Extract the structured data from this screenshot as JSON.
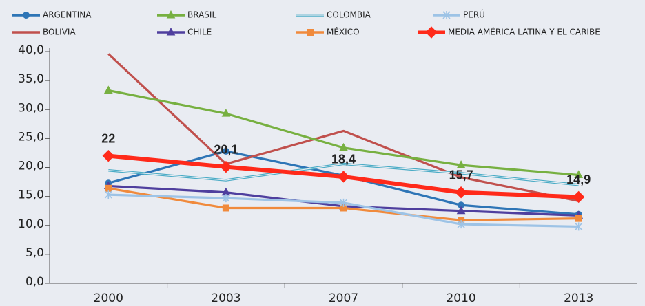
{
  "chart_data": {
    "type": "line",
    "categories": [
      "2000",
      "2003",
      "2007",
      "2010",
      "2013"
    ],
    "ylim": [
      0,
      40
    ],
    "yticks": [
      {
        "value": 0,
        "label": "0,0"
      },
      {
        "value": 5,
        "label": "5,0"
      },
      {
        "value": 10,
        "label": "10,0"
      },
      {
        "value": 15,
        "label": "15,0"
      },
      {
        "value": 20,
        "label": "20,0"
      },
      {
        "value": 25,
        "label": "25,0"
      },
      {
        "value": 30,
        "label": "30,0"
      },
      {
        "value": 35,
        "label": "35,0"
      },
      {
        "value": 40,
        "label": "40,0"
      }
    ],
    "series": [
      {
        "name": "ARGENTINA",
        "color": "#2e75b6",
        "marker": "circle",
        "values": [
          17.3,
          22.8,
          18.6,
          13.5,
          11.9
        ]
      },
      {
        "name": "BOLIVIA",
        "color": "#c0504d",
        "marker": "none",
        "values": [
          39.6,
          20.6,
          26.3,
          18.3,
          14.2
        ]
      },
      {
        "name": "BRASIL",
        "color": "#77b041",
        "marker": "triangle",
        "values": [
          33.3,
          29.3,
          23.4,
          20.4,
          18.7
        ]
      },
      {
        "name": "CHILE",
        "color": "#4f3f9e",
        "marker": "triangle",
        "values": [
          16.8,
          15.7,
          13.3,
          12.5,
          11.7
        ]
      },
      {
        "name": "COLOMBIA",
        "color": "#4bacc6",
        "marker": "double",
        "values": [
          19.5,
          17.8,
          20.6,
          19.0,
          17.0
        ]
      },
      {
        "name": "MÉXICO",
        "color": "#f08a3c",
        "marker": "square",
        "values": [
          16.4,
          13.0,
          13.0,
          10.9,
          11.2
        ]
      },
      {
        "name": "PERÚ",
        "color": "#9dc3e6",
        "marker": "asterisk",
        "values": [
          15.3,
          14.7,
          13.9,
          10.2,
          9.8
        ]
      },
      {
        "name": "MEDIA AMÉRICA LATINA Y EL CARIBE",
        "color": "#ff2a1a",
        "marker": "diamond",
        "values": [
          22,
          20.1,
          18.4,
          15.7,
          14.9
        ],
        "value_labels": [
          "22",
          "20,1",
          "18,4",
          "15,7",
          "14,9"
        ]
      }
    ]
  }
}
